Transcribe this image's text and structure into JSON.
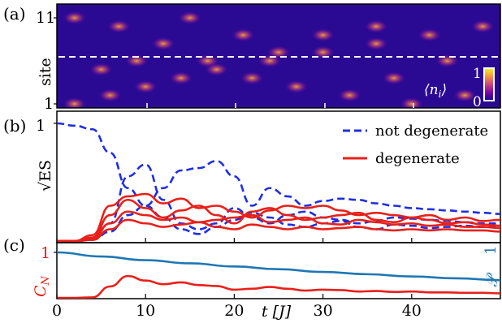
{
  "chart_data": [
    {
      "panel": "(a)",
      "type": "heatmap",
      "ylabel": "site",
      "yticks": [
        "1",
        "11"
      ],
      "colorbar": {
        "label": "⟨n_i⟩",
        "min": "0",
        "max": "1",
        "colormap": "plasma"
      },
      "xlim": [
        0,
        50
      ],
      "ylim": [
        1,
        11
      ],
      "dashed_line_site": 6.5,
      "grid": false
    },
    {
      "panel": "(b)",
      "type": "line",
      "ylabel": "√ES",
      "yticks": [
        "1"
      ],
      "xlim": [
        0,
        50
      ],
      "ylim": [
        0,
        1
      ],
      "legend_position": "top-right",
      "series": [
        {
          "name": "not degenerate",
          "color": "#1f2fe0",
          "style": "dashed",
          "x": [
            0,
            2,
            4,
            6,
            8,
            10,
            12,
            14,
            16,
            18,
            20,
            22,
            24,
            26,
            28,
            30,
            32,
            34,
            36,
            38,
            40,
            42,
            44,
            46,
            48,
            50
          ],
          "y": [
            1.0,
            0.98,
            0.95,
            0.75,
            0.45,
            0.3,
            0.45,
            0.6,
            0.62,
            0.68,
            0.55,
            0.3,
            0.45,
            0.38,
            0.3,
            0.34,
            0.36,
            0.35,
            0.32,
            0.3,
            0.28,
            0.27,
            0.26,
            0.25,
            0.24,
            0.23
          ]
        },
        {
          "name": "",
          "color": "#1f2fe0",
          "style": "dashed",
          "x": [
            0,
            2,
            4,
            6,
            8,
            10,
            12,
            14,
            16,
            18,
            20,
            22,
            24,
            26,
            28,
            30,
            32,
            34,
            36,
            38,
            40,
            42,
            44,
            46,
            48,
            50
          ],
          "y": [
            0,
            0,
            0.02,
            0.15,
            0.55,
            0.65,
            0.35,
            0.15,
            0.1,
            0.15,
            0.28,
            0.2,
            0.15,
            0.22,
            0.25,
            0.2,
            0.18,
            0.15,
            0.17,
            0.2,
            0.19,
            0.18,
            0.17,
            0.16,
            0.15,
            0.15
          ]
        },
        {
          "name": "",
          "color": "#1f2fe0",
          "style": "dashed",
          "x": [
            0,
            2,
            4,
            6,
            8,
            10,
            12,
            14,
            16,
            18,
            20,
            22,
            24,
            26,
            28,
            30,
            32,
            34,
            36,
            38,
            40,
            42,
            44,
            46,
            48,
            50
          ],
          "y": [
            0,
            0,
            0.01,
            0.08,
            0.22,
            0.3,
            0.2,
            0.1,
            0.06,
            0.12,
            0.18,
            0.24,
            0.2,
            0.14,
            0.12,
            0.15,
            0.17,
            0.12,
            0.1,
            0.14,
            0.13,
            0.11,
            0.12,
            0.13,
            0.12,
            0.12
          ]
        },
        {
          "name": "degenerate",
          "color": "#e8201a",
          "style": "solid",
          "x": [
            0,
            2,
            4,
            6,
            8,
            10,
            12,
            14,
            16,
            18,
            20,
            22,
            24,
            26,
            28,
            30,
            32,
            34,
            36,
            38,
            40,
            42,
            44,
            46,
            48,
            50
          ],
          "y": [
            0,
            0,
            0.05,
            0.3,
            0.38,
            0.4,
            0.32,
            0.36,
            0.28,
            0.3,
            0.25,
            0.2,
            0.26,
            0.3,
            0.28,
            0.3,
            0.26,
            0.22,
            0.24,
            0.22,
            0.2,
            0.22,
            0.18,
            0.2,
            0.17,
            0.18
          ]
        },
        {
          "name": "",
          "color": "#e8201a",
          "style": "solid",
          "x": [
            0,
            2,
            4,
            6,
            8,
            10,
            12,
            14,
            16,
            18,
            20,
            22,
            24,
            26,
            28,
            30,
            32,
            34,
            36,
            38,
            40,
            42,
            44,
            46,
            48,
            50
          ],
          "y": [
            0,
            0,
            0.03,
            0.22,
            0.35,
            0.28,
            0.2,
            0.26,
            0.3,
            0.22,
            0.15,
            0.25,
            0.28,
            0.22,
            0.18,
            0.2,
            0.22,
            0.24,
            0.18,
            0.16,
            0.2,
            0.18,
            0.15,
            0.16,
            0.14,
            0.13
          ]
        },
        {
          "name": "",
          "color": "#e8201a",
          "style": "solid",
          "x": [
            0,
            2,
            4,
            6,
            8,
            10,
            12,
            14,
            16,
            18,
            20,
            22,
            24,
            26,
            28,
            30,
            32,
            34,
            36,
            38,
            40,
            42,
            44,
            46,
            48,
            50
          ],
          "y": [
            0,
            0,
            0.02,
            0.15,
            0.25,
            0.22,
            0.18,
            0.2,
            0.16,
            0.18,
            0.2,
            0.22,
            0.16,
            0.18,
            0.2,
            0.15,
            0.14,
            0.18,
            0.16,
            0.14,
            0.15,
            0.13,
            0.14,
            0.12,
            0.12,
            0.11
          ]
        },
        {
          "name": "",
          "color": "#e8201a",
          "style": "solid",
          "x": [
            0,
            2,
            4,
            6,
            8,
            10,
            12,
            14,
            16,
            18,
            20,
            22,
            24,
            26,
            28,
            30,
            32,
            34,
            36,
            38,
            40,
            42,
            44,
            46,
            48,
            50
          ],
          "y": [
            0,
            0,
            0.01,
            0.1,
            0.18,
            0.15,
            0.12,
            0.14,
            0.16,
            0.12,
            0.1,
            0.14,
            0.12,
            0.1,
            0.12,
            0.1,
            0.11,
            0.12,
            0.1,
            0.09,
            0.1,
            0.09,
            0.1,
            0.09,
            0.09,
            0.08
          ]
        }
      ]
    },
    {
      "panel": "(c)",
      "type": "line",
      "ylabel_left": "C_N",
      "ylabel_right": "𝒫",
      "left_ytick": "1",
      "right_ytick": "1",
      "xlabel": "t [J]",
      "xticks": [
        "0",
        "10",
        "20",
        "30",
        "40"
      ],
      "xlim": [
        0,
        50
      ],
      "ylim": [
        0,
        1
      ],
      "series": [
        {
          "name": "",
          "color": "#1f77b4",
          "style": "solid",
          "x": [
            0,
            5,
            10,
            15,
            20,
            25,
            30,
            35,
            40,
            45,
            50
          ],
          "y": [
            1.0,
            0.91,
            0.83,
            0.76,
            0.69,
            0.63,
            0.57,
            0.52,
            0.47,
            0.43,
            0.39
          ]
        },
        {
          "name": "",
          "color": "#e8201a",
          "style": "solid",
          "x": [
            0,
            2,
            4,
            6,
            8,
            10,
            12,
            14,
            16,
            18,
            20,
            22,
            24,
            26,
            28,
            30,
            32,
            34,
            36,
            38,
            40,
            42,
            44,
            46,
            48,
            50
          ],
          "y": [
            0,
            0,
            0.01,
            0.25,
            0.48,
            0.38,
            0.3,
            0.34,
            0.28,
            0.26,
            0.18,
            0.2,
            0.24,
            0.2,
            0.16,
            0.18,
            0.17,
            0.14,
            0.15,
            0.13,
            0.14,
            0.12,
            0.12,
            0.11,
            0.11,
            0.1
          ]
        }
      ]
    }
  ],
  "legend": {
    "not_degenerate": "not degenerate",
    "degenerate": "degenerate"
  }
}
